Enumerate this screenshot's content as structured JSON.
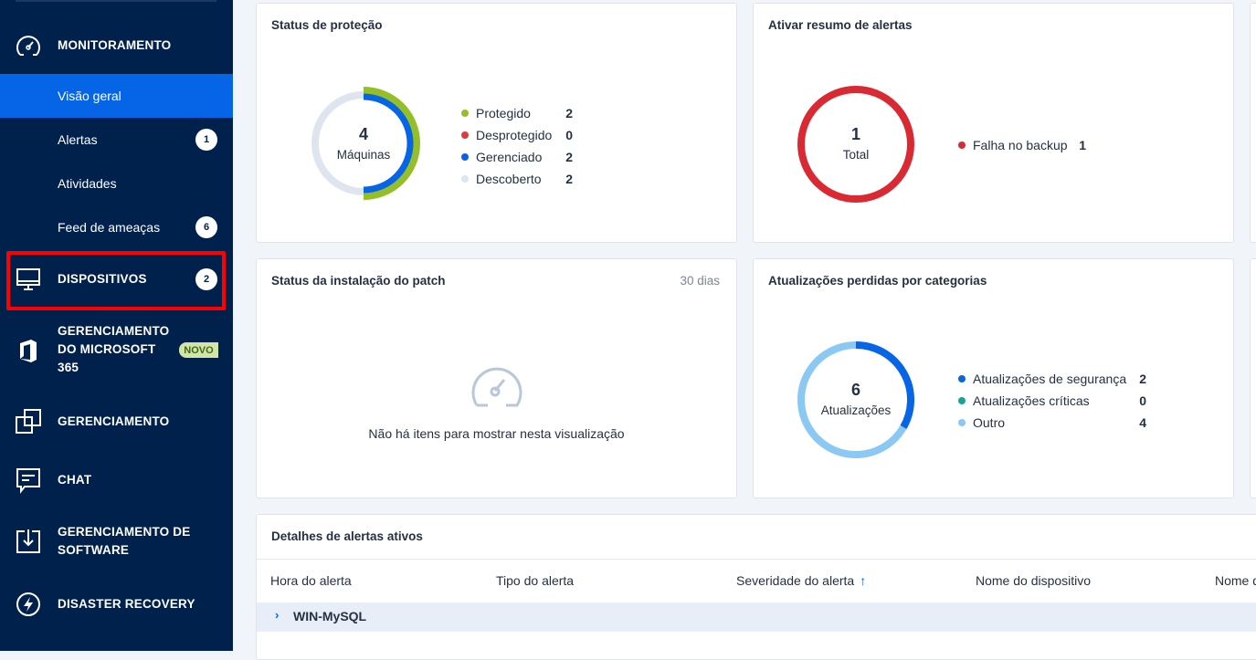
{
  "sidebar": {
    "monitoring": {
      "label": "MONITORAMENTO",
      "icon": "speedometer-icon",
      "items": [
        {
          "label": "Visão geral",
          "active": true
        },
        {
          "label": "Alertas",
          "badge": "1"
        },
        {
          "label": "Atividades"
        },
        {
          "label": "Feed de ameaças",
          "badge": "6"
        }
      ]
    },
    "devices": {
      "label": "DISPOSITIVOS",
      "badge": "2",
      "icon": "monitor-icon"
    },
    "m365": {
      "label_lines": [
        "GERENCIAMENTO",
        "DO MICROSOFT",
        "365"
      ],
      "tag": "NOVO",
      "icon": "office-icon"
    },
    "management": {
      "label": "GERENCIAMENTO",
      "icon": "overlap-squares-icon"
    },
    "chat": {
      "label": "CHAT",
      "icon": "chat-icon"
    },
    "software": {
      "label_lines": [
        "GERENCIAMENTO DE",
        "SOFTWARE"
      ],
      "icon": "download-box-icon"
    },
    "dr": {
      "label": "DISASTER RECOVERY",
      "icon": "lightning-circle-icon"
    }
  },
  "colors": {
    "green": "#95bf28",
    "red": "#e03a3f",
    "blue": "#0565e6",
    "gray": "#dfe5ef",
    "teal": "#14a396",
    "lightblue": "#8cc8f4",
    "alertred": "#d92a34"
  },
  "protection": {
    "title": "Status de proteção",
    "total": "4",
    "total_label": "Máquinas",
    "legend": [
      {
        "label": "Protegido",
        "value": 2,
        "color": "#95bf28"
      },
      {
        "label": "Desprotegido",
        "value": 0,
        "color": "#e03a3f"
      },
      {
        "label": "Gerenciado",
        "value": 2,
        "color": "#0565e6"
      },
      {
        "label": "Descoberto",
        "value": 2,
        "color": "#dfe5ef"
      }
    ]
  },
  "alerts": {
    "title": "Ativar resumo de alertas",
    "total": "1",
    "total_label": "Total",
    "legend": [
      {
        "label": "Falha no backup",
        "value": 1,
        "color": "#d92a34"
      }
    ]
  },
  "patch": {
    "title": "Status da instalação do patch",
    "period": "30 dias",
    "empty": "Não há itens para mostrar nesta visualização"
  },
  "updates": {
    "title": "Atualizações perdidas por categorias",
    "total": "6",
    "total_label": "Atualizações",
    "legend": [
      {
        "label": "Atualizações de segurança",
        "value": 2,
        "color": "#0565e6"
      },
      {
        "label": "Atualizações críticas",
        "value": 0,
        "color": "#14a396"
      },
      {
        "label": "Outro",
        "value": 4,
        "color": "#8cc8f4"
      }
    ]
  },
  "active_alerts": {
    "title": "Detalhes de alertas ativos",
    "columns": [
      "Hora do alerta",
      "Tipo do alerta",
      "Severidade do alerta",
      "Nome do dispositivo",
      "Nome d"
    ],
    "sort_column": "Severidade do alerta",
    "sort": "ascending",
    "groups": [
      {
        "label": "WIN-MySQL",
        "expanded": false
      }
    ]
  }
}
